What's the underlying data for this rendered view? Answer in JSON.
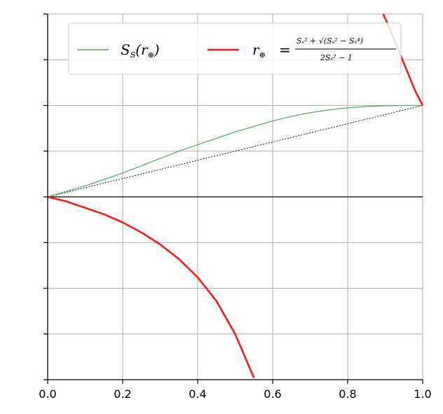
{
  "chart_data": {
    "type": "line",
    "xlim": [
      0.0,
      1.0
    ],
    "ylim": [
      -1.0,
      1.0
    ],
    "grid": true,
    "legend_position": "top-right",
    "x_ticks": [
      "0.0",
      "0.2",
      "0.4",
      "0.6",
      "0.8",
      "1.0"
    ],
    "x_tick_values": [
      0.0,
      0.2,
      0.4,
      0.6,
      0.8,
      1.0
    ],
    "y_tick_values": [
      -1.0,
      -0.75,
      -0.5,
      -0.25,
      0.0,
      0.25,
      0.5,
      0.75,
      1.0
    ],
    "reference_lines": [
      {
        "style": "dotted",
        "color": "#000000",
        "x": [
          0.0,
          1.0
        ],
        "y": [
          0.0,
          0.5
        ]
      },
      {
        "style": "solid",
        "color": "#000000",
        "x": [
          0.0,
          1.0
        ],
        "y": [
          0.0,
          0.0
        ]
      }
    ],
    "series": [
      {
        "name": "green_curve",
        "color": "#4caf50",
        "x": [
          0.0,
          0.05,
          0.1,
          0.15,
          0.2,
          0.25,
          0.3,
          0.35,
          0.4,
          0.45,
          0.5,
          0.55,
          0.6,
          0.65,
          0.7,
          0.75,
          0.8,
          0.85,
          0.9,
          0.95,
          1.0
        ],
        "y": [
          0.0,
          0.03,
          0.06,
          0.095,
          0.13,
          0.17,
          0.21,
          0.25,
          0.285,
          0.32,
          0.355,
          0.385,
          0.415,
          0.44,
          0.46,
          0.475,
          0.487,
          0.494,
          0.498,
          0.5,
          0.5
        ]
      },
      {
        "name": "red_curve_lower",
        "color": "#ff1a1a",
        "x": [
          0.0,
          0.05,
          0.1,
          0.15,
          0.2,
          0.25,
          0.3,
          0.35,
          0.4,
          0.45,
          0.5,
          0.55
        ],
        "y": [
          0.0,
          -0.025,
          -0.06,
          -0.095,
          -0.14,
          -0.195,
          -0.26,
          -0.34,
          -0.44,
          -0.57,
          -0.75,
          -0.99
        ]
      },
      {
        "name": "red_curve_upper",
        "color": "#ff1a1a",
        "x": [
          0.895,
          0.92,
          0.94,
          0.96,
          0.98,
          1.0
        ],
        "y": [
          1.0,
          0.88,
          0.78,
          0.68,
          0.58,
          0.5
        ]
      }
    ],
    "legend": {
      "label1_main": "S",
      "label1_sub": "S",
      "label1_arg": "(r",
      "label1_close": ")",
      "label2_lhs": "r",
      "label2_eq": "=",
      "label2_num": "Sₛ² + √(Sₛ² − Sₛ⁴)",
      "label2_den": "2Sₛ² − 1"
    }
  }
}
